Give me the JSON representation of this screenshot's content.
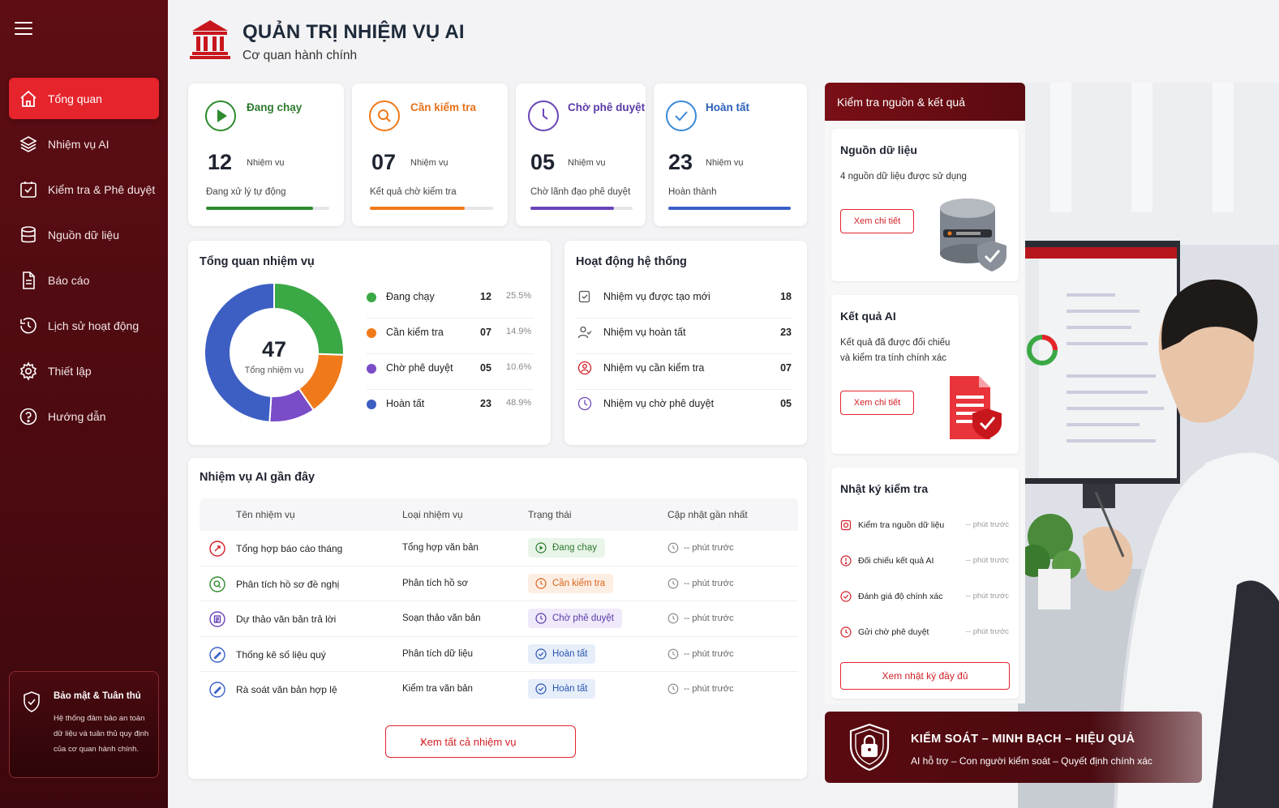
{
  "header": {
    "title": "QUẢN TRỊ NHIỆM VỤ AI",
    "subtitle": "Cơ quan hành chính"
  },
  "sidebar": {
    "items": [
      {
        "label": "Tổng quan",
        "icon": "home-icon",
        "active": true
      },
      {
        "label": "Nhiệm vụ AI",
        "icon": "layers-icon"
      },
      {
        "label": "Kiểm tra & Phê duyệt",
        "icon": "check-square-icon"
      },
      {
        "label": "Nguồn dữ liệu",
        "icon": "database-icon"
      },
      {
        "label": "Báo cáo",
        "icon": "document-icon"
      },
      {
        "label": "Lịch sử hoạt động",
        "icon": "history-icon"
      },
      {
        "label": "Thiết lập",
        "icon": "gear-icon"
      },
      {
        "label": "Hướng dẫn",
        "icon": "help-icon"
      }
    ],
    "security": {
      "title": "Bảo mật & Tuân thủ",
      "text_lines": [
        "Hệ thống đảm bảo an toàn",
        "dữ liệu và tuân thủ quy định",
        "của cơ quan hành chính."
      ]
    }
  },
  "stats": [
    {
      "title": "Đang chạy",
      "value": "12",
      "unit": "Nhiệm vụ",
      "desc": "Đang xử lý tự động",
      "color": "#2e8b2e",
      "progress": 0.87
    },
    {
      "title": "Cần kiểm tra",
      "value": "07",
      "unit": "Nhiệm vụ",
      "desc": "Kết quả chờ kiểm tra",
      "color": "#f07a1a",
      "progress": 0.77
    },
    {
      "title": "Chờ phê duyệt",
      "value": "05",
      "unit": "Nhiệm vụ",
      "desc": "Chờ lãnh đạo phê duyệt",
      "color": "#6a45b8",
      "progress": 0.82
    },
    {
      "title": "Hoàn tất",
      "value": "23",
      "unit": "Nhiệm vụ",
      "desc": "Hoàn thành",
      "color": "#3a5fc8",
      "progress": 1.0
    }
  ],
  "overview": {
    "title": "Tổng quan nhiệm vụ",
    "total": "47",
    "total_label": "Tổng nhiệm vụ",
    "items": [
      {
        "label": "Đang chạy",
        "value": "12",
        "pct": "25.5%",
        "color": "#3aa845",
        "share": 25.5
      },
      {
        "label": "Cần kiểm tra",
        "value": "07",
        "pct": "14.9%",
        "color": "#f07a1a",
        "share": 14.9
      },
      {
        "label": "Chờ phê duyệt",
        "value": "05",
        "pct": "10.6%",
        "color": "#7a4cc8",
        "share": 10.6
      },
      {
        "label": "Hoàn tất",
        "value": "23",
        "pct": "48.9%",
        "color": "#3d5fc4",
        "share": 48.9
      }
    ]
  },
  "activity": {
    "title": "Hoạt động hệ thống",
    "items": [
      {
        "label": "Nhiệm vụ được tạo mới",
        "value": "18",
        "icon": "new-task-icon"
      },
      {
        "label": "Nhiệm vụ hoàn tất",
        "value": "23",
        "icon": "user-check-icon"
      },
      {
        "label": "Nhiệm vụ cần kiểm tra",
        "value": "07",
        "icon": "user-alert-icon"
      },
      {
        "label": "Nhiệm vụ chờ phê duyệt",
        "value": "05",
        "icon": "clock-icon"
      }
    ]
  },
  "recent": {
    "title": "Nhiệm vụ AI gần đây",
    "columns": [
      "Tên nhiệm vụ",
      "Loại nhiệm vụ",
      "Trạng thái",
      "Cập nhật gần nhất"
    ],
    "rows": [
      {
        "name": "Tổng hợp báo cáo tháng",
        "type": "Tổng hợp văn bản",
        "status": "Đang chạy",
        "status_key": "running",
        "updated": "-- phút trước",
        "icon_color": "#d21f26"
      },
      {
        "name": "Phân tích hồ sơ đề nghị",
        "type": "Phân tích hồ sơ",
        "status": "Cần kiểm tra",
        "status_key": "review",
        "updated": "-- phút trước",
        "icon_color": "#2e8b2e"
      },
      {
        "name": "Dự thảo văn bản trả lời",
        "type": "Soạn thảo văn bản",
        "status": "Chờ phê duyệt",
        "status_key": "approve",
        "updated": "-- phút trước",
        "icon_color": "#6a45b8"
      },
      {
        "name": "Thống kê số liệu quý",
        "type": "Phân tích dữ liệu",
        "status": "Hoàn tất",
        "status_key": "done",
        "updated": "-- phút trước",
        "icon_color": "#3a5fc8"
      },
      {
        "name": "Rà soát văn bản hợp lệ",
        "type": "Kiểm tra văn bản",
        "status": "Hoàn tất",
        "status_key": "done",
        "updated": "-- phút trước",
        "icon_color": "#3a5fc8"
      }
    ],
    "view_all": "Xem tất cả nhiệm vụ"
  },
  "right_panel": {
    "title": "Kiểm tra nguồn & kết quả",
    "source": {
      "title": "Nguồn dữ liệu",
      "desc": "4 nguồn dữ liệu được sử dụng",
      "button": "Xem chi tiết"
    },
    "result": {
      "title": "Kết quả AI",
      "desc_lines": [
        "Kết quả đã được đối chiếu",
        "và kiểm tra tính chính xác"
      ],
      "button": "Xem chi tiết"
    },
    "log": {
      "title": "Nhật ký kiểm tra",
      "items": [
        {
          "label": "Kiểm tra nguồn dữ liệu",
          "time": "-- phút trước"
        },
        {
          "label": "Đối chiếu kết quả AI",
          "time": "-- phút trước"
        },
        {
          "label": "Đánh giá độ chính xác",
          "time": "-- phút trước"
        },
        {
          "label": "Gửi chờ phê duyệt",
          "time": "-- phút trước"
        }
      ],
      "button": "Xem nhật ký đầy đủ"
    }
  },
  "banner": {
    "title": "KIỂM SOÁT – MINH BẠCH – HIỆU QUẢ",
    "desc": "AI hỗ trợ – Con người kiểm soát – Quyết định chính xác"
  },
  "colors": {
    "primary": "#e5242b",
    "sidebar": "#5e0d14"
  }
}
